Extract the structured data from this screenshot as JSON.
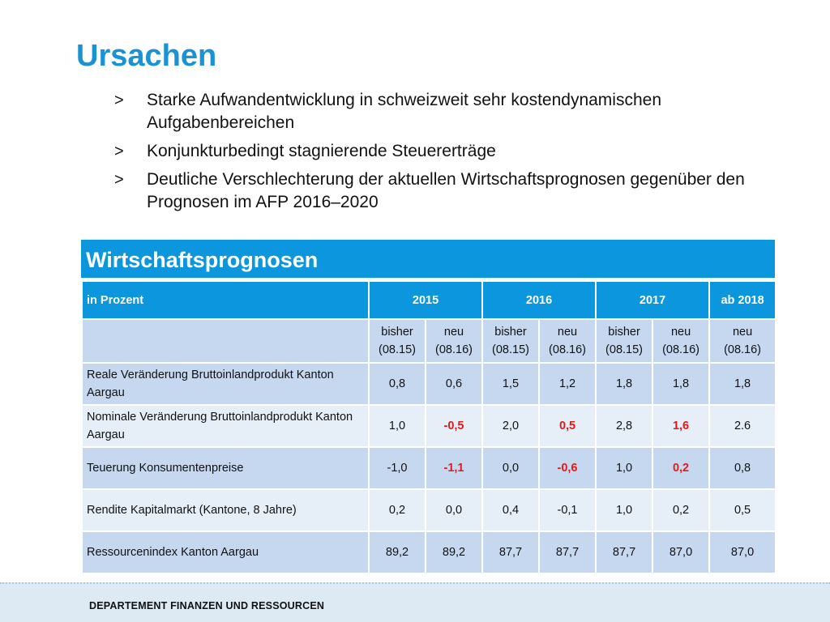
{
  "title": "Ursachen",
  "bullets": [
    "Starke Aufwandentwicklung in schweizweit sehr kostendynamischen Aufgabenbereichen",
    "Konjunkturbedingt stagnierende Steuererträge",
    "Deutliche Verschlechterung der aktuellen Wirtschaftsprognosen gegenüber den Prognosen im AFP 2016–2020"
  ],
  "bullet_marker": ">",
  "table": {
    "title": "Wirtschaftsprognosen",
    "header": {
      "label": "in Prozent",
      "years": [
        "2015",
        "2016",
        "2017",
        "ab 2018"
      ]
    },
    "subheader": [
      "bisher\n(08.15)",
      "neu\n(08.16)",
      "bisher\n(08.15)",
      "neu\n(08.16)",
      "bisher\n(08.15)",
      "neu\n(08.16)",
      "neu\n(08.16)"
    ],
    "rows": [
      {
        "label": "Reale Veränderung Bruttoinlandprodukt Kanton Aargau",
        "values": [
          "0,8",
          "0,6",
          "1,5",
          "1,2",
          "1,8",
          "1,8",
          "1,8"
        ],
        "negative": []
      },
      {
        "label": "Nominale Veränderung Bruttoinlandprodukt Kanton Aargau",
        "values": [
          "1,0",
          "-0,5",
          "2,0",
          "0,5",
          "2,8",
          "1,6",
          "2.6"
        ],
        "negative": [
          1,
          3,
          5
        ]
      },
      {
        "label": "Teuerung Konsumentenpreise",
        "values": [
          "-1,0",
          "-1,1",
          "0,0",
          "-0,6",
          "1,0",
          "0,2",
          "0,8"
        ],
        "negative": [
          1,
          3,
          5
        ]
      },
      {
        "label": "Rendite Kapitalmarkt (Kantone, 8 Jahre)",
        "values": [
          "0,2",
          "0,0",
          "0,4",
          "-0,1",
          "1,0",
          "0,2",
          "0,5"
        ],
        "negative": []
      },
      {
        "label": "Ressourcenindex Kanton Aargau",
        "values": [
          "89,2",
          "89,2",
          "87,7",
          "87,7",
          "87,7",
          "87,0",
          "87,0"
        ],
        "negative": []
      }
    ]
  },
  "footer": "DEPARTEMENT FINANZEN UND RESSOURCEN",
  "colors": {
    "accent": "#1a93d6",
    "table_header": "#0b96dd",
    "highlight": "#e01b1b"
  }
}
